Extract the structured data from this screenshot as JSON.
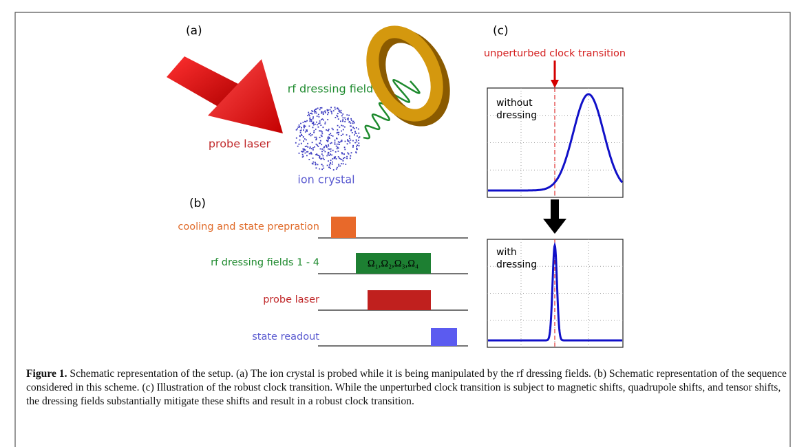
{
  "panels": {
    "a": {
      "label": "(a)",
      "probe_label": "probe laser",
      "field_label": "rf dressing field",
      "crystal_label": "ion crystal"
    },
    "b": {
      "label": "(b)",
      "rows": [
        {
          "label": "cooling and state prepration"
        },
        {
          "label": "rf dressing fields 1 - 4",
          "pulse_text": "Ω₁,Ω₂,Ω₃,Ω₄"
        },
        {
          "label": "probe laser"
        },
        {
          "label": "state readout"
        }
      ]
    },
    "c": {
      "label": "(c)",
      "arrow_label": "unperturbed clock transition",
      "plots": [
        {
          "label": [
            "without",
            "dressing"
          ]
        },
        {
          "label": [
            "with",
            "dressing"
          ]
        }
      ]
    }
  },
  "caption": {
    "title": "Figure 1.",
    "text": "Schematic representation of the setup. (a) The ion crystal is probed while it is being manipulated by the rf dressing fields. (b) Schematic representation of the sequence considered in this scheme. (c) Illustration of the robust clock transition. While the unperturbed clock transition is subject to magnetic shifts, quadrupole shifts, and tensor shifts, the dressing fields substantially mitigate these shifts and result in a robust clock transition."
  }
}
